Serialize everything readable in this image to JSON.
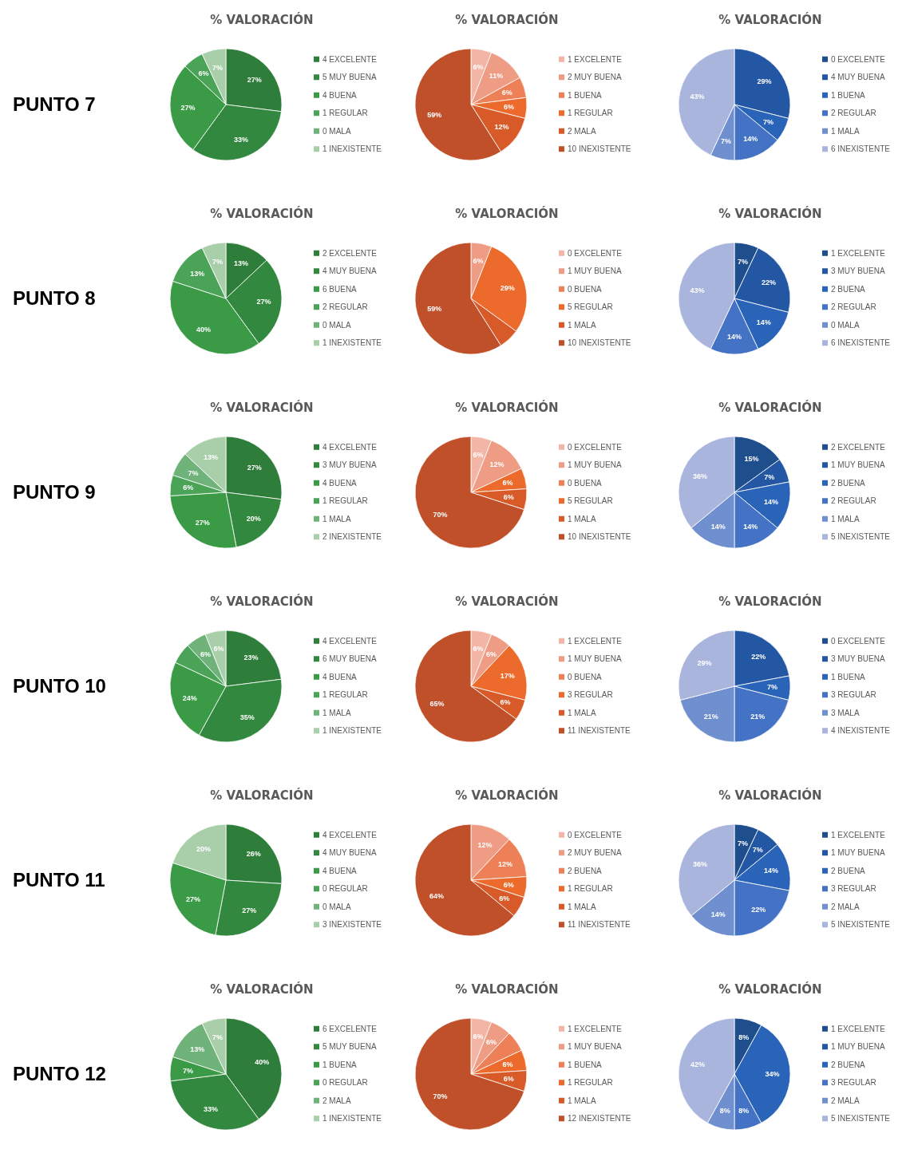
{
  "chart_data": [
    {
      "type": "pie",
      "title": "% VALORACIÓN",
      "annotations": [
        "PUNTO 7"
      ],
      "legend": "right",
      "categories": [
        "4 EXCELENTE",
        "5 MUY BUENA",
        "4 BUENA",
        "1 REGULAR",
        "0 MALA",
        "1 INEXISTENTE"
      ],
      "values": [
        27,
        33,
        27,
        6,
        0,
        7
      ],
      "value_labels": [
        "27%",
        "33%",
        "27%",
        "6%",
        null,
        "7%"
      ],
      "colors": [
        "#2e7d3a",
        "#33883f",
        "#3a9a45",
        "#4aa356",
        "#6fb27a",
        "#a9cfaa"
      ]
    },
    {
      "type": "pie",
      "title": "% VALORACIÓN",
      "legend": "right",
      "categories": [
        "1 EXCELENTE",
        "2 MUY BUENA",
        "1 BUENA",
        "1 REGULAR",
        "2 MALA",
        "10 INEXISTENTE"
      ],
      "values": [
        6,
        11,
        6,
        6,
        12,
        59
      ],
      "value_labels": [
        "6%",
        "11%",
        "6%",
        "6%",
        "12%",
        "59%"
      ],
      "colors": [
        "#f2b5a6",
        "#ee9c84",
        "#ee8058",
        "#ec6b2c",
        "#d85a28",
        "#c0502a"
      ]
    },
    {
      "type": "pie",
      "title": "% VALORACIÓN",
      "legend": "right",
      "categories": [
        "0 EXCELENTE",
        "4 MUY BUENA",
        "1 BUENA",
        "2 REGULAR",
        "1 MALA",
        "6 INEXISTENTE"
      ],
      "values": [
        0,
        29,
        7,
        14,
        7,
        43
      ],
      "value_labels": [
        null,
        "29%",
        "7%",
        "14%",
        "7%",
        "43%"
      ],
      "colors": [
        "#1f4e8c",
        "#2356a3",
        "#2a64b8",
        "#4472c4",
        "#6f8fcf",
        "#a9b5dc"
      ]
    },
    {
      "type": "pie",
      "title": "% VALORACIÓN",
      "annotations": [
        "PUNTO 8"
      ],
      "legend": "right",
      "categories": [
        "2 EXCELENTE",
        "4 MUY BUENA",
        "6 BUENA",
        "2 REGULAR",
        "0 MALA",
        "1 INEXISTENTE"
      ],
      "values": [
        13,
        27,
        40,
        13,
        0,
        7
      ],
      "value_labels": [
        "13%",
        "27%",
        "40%",
        "13%",
        null,
        "7%"
      ],
      "colors": [
        "#2e7d3a",
        "#33883f",
        "#3a9a45",
        "#4aa356",
        "#6fb27a",
        "#a9cfaa"
      ]
    },
    {
      "type": "pie",
      "title": "% VALORACIÓN",
      "legend": "right",
      "categories": [
        "0 EXCELENTE",
        "1 MUY BUENA",
        "0 BUENA",
        "5 REGULAR",
        "1 MALA",
        "10 INEXISTENTE"
      ],
      "values": [
        0,
        6,
        0,
        29,
        6,
        59
      ],
      "value_labels": [
        null,
        "6%",
        null,
        "29%",
        null,
        "59%"
      ],
      "colors": [
        "#f2b5a6",
        "#ee9c84",
        "#ee8058",
        "#ec6b2c",
        "#d85a28",
        "#c0502a"
      ]
    },
    {
      "type": "pie",
      "title": "% VALORACIÓN",
      "legend": "right",
      "categories": [
        "1 EXCELENTE",
        "3 MUY BUENA",
        "2 BUENA",
        "2 REGULAR",
        "0 MALA",
        "6 INEXISTENTE"
      ],
      "values": [
        7,
        22,
        14,
        14,
        0,
        43
      ],
      "value_labels": [
        "7%",
        "22%",
        "14%",
        "14%",
        null,
        "43%"
      ],
      "colors": [
        "#1f4e8c",
        "#2356a3",
        "#2a64b8",
        "#4472c4",
        "#6f8fcf",
        "#a9b5dc"
      ]
    },
    {
      "type": "pie",
      "title": "% VALORACIÓN",
      "annotations": [
        "PUNTO 9"
      ],
      "legend": "right",
      "categories": [
        "4 EXCELENTE",
        "3 MUY BUENA",
        "4 BUENA",
        "1 REGULAR",
        "1 MALA",
        "2 INEXISTENTE"
      ],
      "values": [
        27,
        20,
        27,
        6,
        7,
        13
      ],
      "value_labels": [
        "27%",
        "20%",
        "27%",
        "6%",
        "7%",
        "13%"
      ],
      "colors": [
        "#2e7d3a",
        "#33883f",
        "#3a9a45",
        "#4aa356",
        "#6fb27a",
        "#a9cfaa"
      ]
    },
    {
      "type": "pie",
      "title": "% VALORACIÓN",
      "legend": "right",
      "categories": [
        "0 EXCELENTE",
        "1 MUY BUENA",
        "0 BUENA",
        "5 REGULAR",
        "1 MALA",
        "10 INEXISTENTE"
      ],
      "values": [
        6,
        12,
        0,
        6,
        6,
        70
      ],
      "value_labels": [
        "6%",
        "12%",
        null,
        "6%",
        "6%",
        "70%"
      ],
      "colors": [
        "#f2b5a6",
        "#ee9c84",
        "#ee8058",
        "#ec6b2c",
        "#d85a28",
        "#c0502a"
      ]
    },
    {
      "type": "pie",
      "title": "% VALORACIÓN",
      "legend": "right",
      "categories": [
        "2 EXCELENTE",
        "1 MUY BUENA",
        "2 BUENA",
        "2 REGULAR",
        "1 MALA",
        "5 INEXISTENTE"
      ],
      "values": [
        15,
        7,
        14,
        14,
        14,
        36
      ],
      "value_labels": [
        "15%",
        "7%",
        "14%",
        "14%",
        "14%",
        "36%"
      ],
      "colors": [
        "#1f4e8c",
        "#2356a3",
        "#2a64b8",
        "#4472c4",
        "#6f8fcf",
        "#a9b5dc"
      ]
    },
    {
      "type": "pie",
      "title": "% VALORACIÓN",
      "annotations": [
        "PUNTO 10"
      ],
      "legend": "right",
      "categories": [
        "4 EXCELENTE",
        "6 MUY BUENA",
        "4 BUENA",
        "1 REGULAR",
        "1 MALA",
        "1 INEXISTENTE"
      ],
      "values": [
        23,
        35,
        24,
        6,
        6,
        6
      ],
      "value_labels": [
        "23%",
        "35%",
        "24%",
        null,
        "6%",
        "6%"
      ],
      "colors": [
        "#2e7d3a",
        "#33883f",
        "#3a9a45",
        "#4aa356",
        "#6fb27a",
        "#a9cfaa"
      ]
    },
    {
      "type": "pie",
      "title": "% VALORACIÓN",
      "legend": "right",
      "categories": [
        "1 EXCELENTE",
        "1 MUY BUENA",
        "0 BUENA",
        "3 REGULAR",
        "1 MALA",
        "11 INEXISTENTE"
      ],
      "values": [
        6,
        6,
        0,
        17,
        6,
        65
      ],
      "value_labels": [
        "6%",
        "6%",
        null,
        "17%",
        "6%",
        "65%"
      ],
      "colors": [
        "#f2b5a6",
        "#ee9c84",
        "#ee8058",
        "#ec6b2c",
        "#d85a28",
        "#c0502a"
      ]
    },
    {
      "type": "pie",
      "title": "% VALORACIÓN",
      "legend": "right",
      "categories": [
        "0 EXCELENTE",
        "3 MUY BUENA",
        "1 BUENA",
        "3 REGULAR",
        "3 MALA",
        "4 INEXISTENTE"
      ],
      "values": [
        0,
        22,
        7,
        21,
        21,
        29
      ],
      "value_labels": [
        null,
        "22%",
        "7%",
        "21%",
        "21%",
        "29%"
      ],
      "colors": [
        "#1f4e8c",
        "#2356a3",
        "#2a64b8",
        "#4472c4",
        "#6f8fcf",
        "#a9b5dc"
      ]
    },
    {
      "type": "pie",
      "title": "% VALORACIÓN",
      "annotations": [
        "PUNTO 11"
      ],
      "legend": "right",
      "categories": [
        "4 EXCELENTE",
        "4 MUY BUENA",
        "4 BUENA",
        "0 REGULAR",
        "0 MALA",
        "3 INEXISTENTE"
      ],
      "values": [
        26,
        27,
        27,
        0,
        0,
        20
      ],
      "value_labels": [
        "26%",
        "27%",
        "27%",
        null,
        null,
        "20%"
      ],
      "colors": [
        "#2e7d3a",
        "#33883f",
        "#3a9a45",
        "#4aa356",
        "#6fb27a",
        "#a9cfaa"
      ]
    },
    {
      "type": "pie",
      "title": "% VALORACIÓN",
      "legend": "right",
      "categories": [
        "0 EXCELENTE",
        "2 MUY BUENA",
        "2 BUENA",
        "1 REGULAR",
        "1 MALA",
        "11 INEXISTENTE"
      ],
      "values": [
        0,
        12,
        12,
        6,
        6,
        64
      ],
      "value_labels": [
        null,
        "12%",
        "12%",
        "6%",
        "6%",
        "64%"
      ],
      "colors": [
        "#f2b5a6",
        "#ee9c84",
        "#ee8058",
        "#ec6b2c",
        "#d85a28",
        "#c0502a"
      ]
    },
    {
      "type": "pie",
      "title": "% VALORACIÓN",
      "legend": "right",
      "categories": [
        "1 EXCELENTE",
        "1 MUY BUENA",
        "2 BUENA",
        "3 REGULAR",
        "2 MALA",
        "5 INEXISTENTE"
      ],
      "values": [
        7,
        7,
        14,
        22,
        14,
        36
      ],
      "value_labels": [
        "7%",
        "7%",
        "14%",
        "22%",
        "14%",
        "36%"
      ],
      "colors": [
        "#1f4e8c",
        "#2356a3",
        "#2a64b8",
        "#4472c4",
        "#6f8fcf",
        "#a9b5dc"
      ]
    },
    {
      "type": "pie",
      "title": "% VALORACIÓN",
      "annotations": [
        "PUNTO 12"
      ],
      "legend": "right",
      "categories": [
        "6 EXCELENTE",
        "5 MUY BUENA",
        "1 BUENA",
        "0 REGULAR",
        "2 MALA",
        "1 INEXISTENTE"
      ],
      "values": [
        40,
        33,
        7,
        0,
        13,
        7
      ],
      "value_labels": [
        "40%",
        "33%",
        "7%",
        null,
        "13%",
        "7%"
      ],
      "colors": [
        "#2e7d3a",
        "#33883f",
        "#3a9a45",
        "#4aa356",
        "#6fb27a",
        "#a9cfaa"
      ]
    },
    {
      "type": "pie",
      "title": "% VALORACIÓN",
      "legend": "right",
      "categories": [
        "1 EXCELENTE",
        "1 MUY BUENA",
        "1 BUENA",
        "1 REGULAR",
        "1 MALA",
        "12 INEXISTENTE"
      ],
      "values": [
        6,
        6,
        6,
        6,
        6,
        70
      ],
      "value_labels": [
        "6%",
        "6%",
        null,
        "6%",
        "6%",
        "70%"
      ],
      "colors": [
        "#f2b5a6",
        "#ee9c84",
        "#ee8058",
        "#ec6b2c",
        "#d85a28",
        "#c0502a"
      ]
    },
    {
      "type": "pie",
      "title": "% VALORACIÓN",
      "legend": "right",
      "categories": [
        "1 EXCELENTE",
        "1 MUY BUENA",
        "2 BUENA",
        "3 REGULAR",
        "2 MALA",
        "5 INEXISTENTE"
      ],
      "values": [
        8,
        0,
        34,
        8,
        8,
        42
      ],
      "value_labels": [
        "8%",
        null,
        "34%",
        "8%",
        "8%",
        "42%"
      ],
      "colors": [
        "#1f4e8c",
        "#2356a3",
        "#2a64b8",
        "#4472c4",
        "#6f8fcf",
        "#a9b5dc"
      ]
    }
  ]
}
